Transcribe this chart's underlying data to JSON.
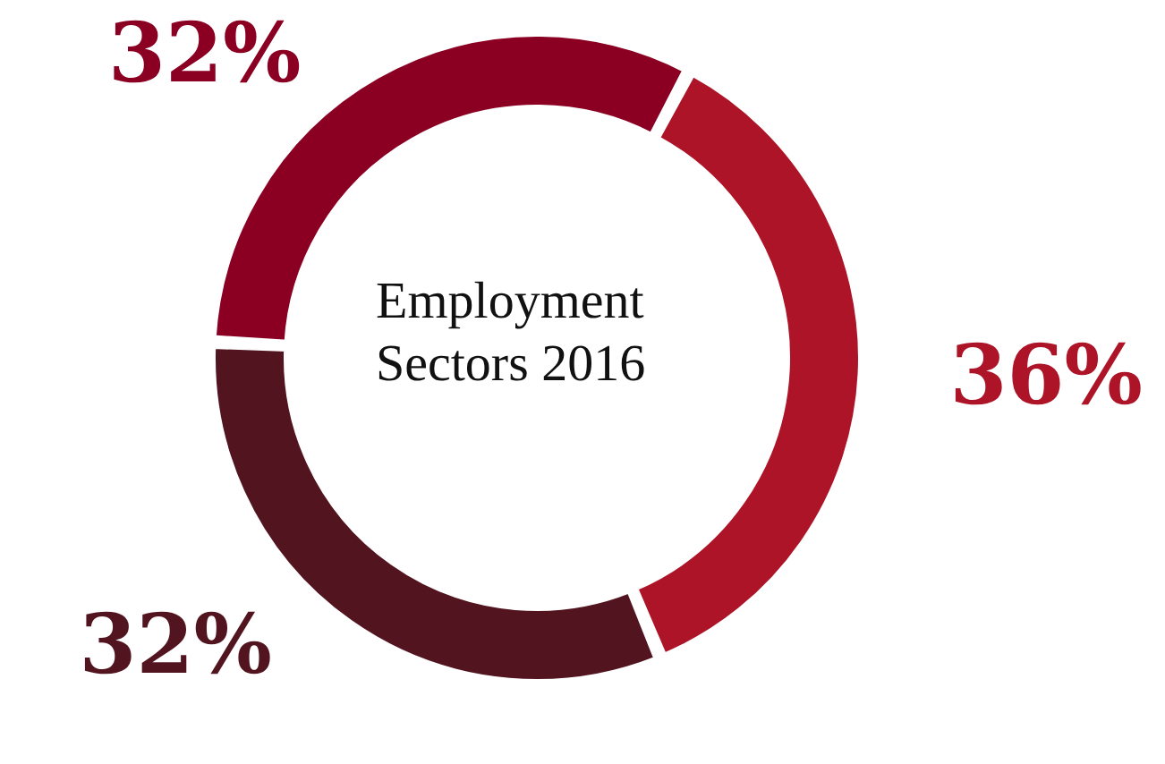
{
  "chart_data": {
    "type": "donut",
    "title": "Employment Sectors 2016",
    "categories": [
      null,
      null,
      null
    ],
    "values": [
      36,
      32,
      32
    ],
    "colors": [
      "#ae1428",
      "#521520",
      "#8b0022"
    ],
    "value_labels": [
      "36%",
      "32%",
      "32%"
    ]
  }
}
